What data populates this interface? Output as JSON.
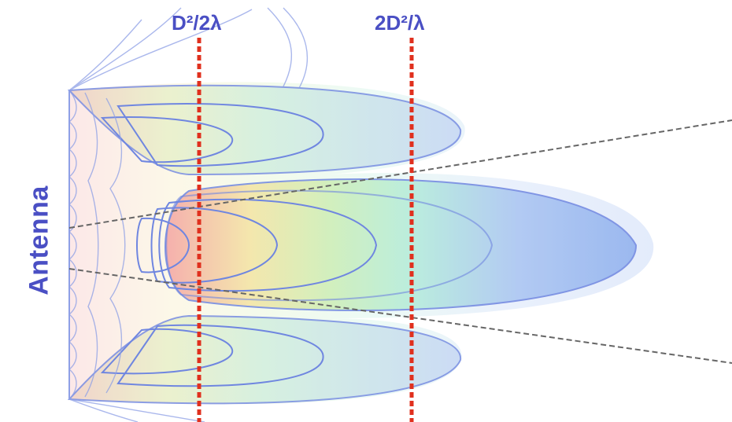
{
  "labels": {
    "antenna": "Antenna",
    "near_boundary": "D²/2λ",
    "far_boundary": "2D²/λ"
  },
  "colors": {
    "label_text": "#4a4fc4",
    "boundary_line": "#e0301e",
    "contour_stroke": "#6f86e0",
    "cone_line": "#666666",
    "near_field_warm": "#f4a3a3",
    "mid_field": "#bfe8c8",
    "far_field_blue": "#a9c4f2"
  },
  "icons": {
    "pattern": "radiation-pattern-lobes",
    "boundaries": "dashed-vertical-line"
  }
}
